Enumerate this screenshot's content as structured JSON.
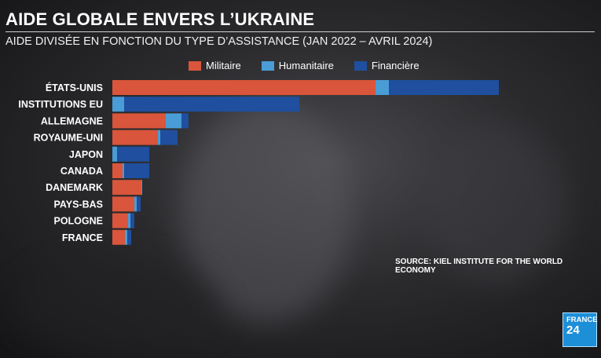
{
  "title": "AIDE GLOBALE ENVERS L’UKRAINE",
  "subtitle": "AIDE DIVISÉE EN FONCTION DU TYPE D’ASSISTANCE (JAN 2022 – AVRIL 2024)",
  "source": "SOURCE: KIEL INSTITUTE FOR THE WORLD ECONOMY",
  "logo": {
    "line1": "FRANCE",
    "line2": "24"
  },
  "colors": {
    "Militaire": "#d9553b",
    "Humanitaire": "#4a9cd6",
    "Financière": "#1f4f9e"
  },
  "chart_data": {
    "type": "bar",
    "orientation": "horizontal",
    "stacked": true,
    "categories": [
      "ÉTATS-UNIS",
      "INSTITUTIONS EU",
      "ALLEMAGNE",
      "ROYAUME-UNI",
      "JAPON",
      "CANADA",
      "DANEMARK",
      "PAYS-BAS",
      "POLOGNE",
      "FRANCE"
    ],
    "series": [
      {
        "name": "Militaire",
        "values": [
          335,
          0,
          68,
          58,
          0,
          13,
          37,
          28,
          20,
          16
        ]
      },
      {
        "name": "Humanitaire",
        "values": [
          17,
          15,
          20,
          3,
          6,
          2,
          1,
          3,
          3,
          3
        ]
      },
      {
        "name": "Financière",
        "values": [
          140,
          223,
          9,
          22,
          41,
          32,
          0,
          5,
          5,
          5
        ]
      }
    ],
    "legend_position": "top",
    "grid": false,
    "axis_ticks": false
  }
}
